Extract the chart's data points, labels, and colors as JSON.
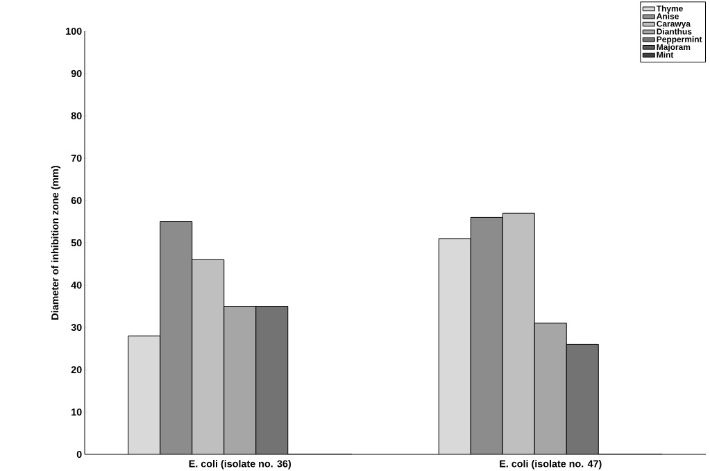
{
  "chart_data": {
    "type": "bar",
    "ylabel": "Diameter of inhibition zone (mm)",
    "categories": [
      "E. coli (isolate no. 36)",
      "E. coli (isolate no. 47)"
    ],
    "series": [
      {
        "name": "Thyme",
        "color": "#d9d9d9",
        "values": [
          28,
          51
        ]
      },
      {
        "name": "Anise",
        "color": "#8c8c8c",
        "values": [
          55,
          56
        ]
      },
      {
        "name": "Carawya",
        "color": "#bfbfbf",
        "values": [
          46,
          57
        ]
      },
      {
        "name": "Dianthus",
        "color": "#a6a6a6",
        "values": [
          35,
          31
        ]
      },
      {
        "name": "Peppermint",
        "color": "#737373",
        "values": [
          35,
          26
        ]
      },
      {
        "name": "Majoram",
        "color": "#595959",
        "values": [
          0,
          0
        ]
      },
      {
        "name": "Mint",
        "color": "#404040",
        "values": [
          0,
          0
        ]
      }
    ],
    "ylim": [
      0,
      100
    ],
    "yticks": [
      0,
      10,
      20,
      30,
      40,
      50,
      60,
      70,
      80,
      90,
      100
    ],
    "grid": false,
    "legend": "top right"
  }
}
